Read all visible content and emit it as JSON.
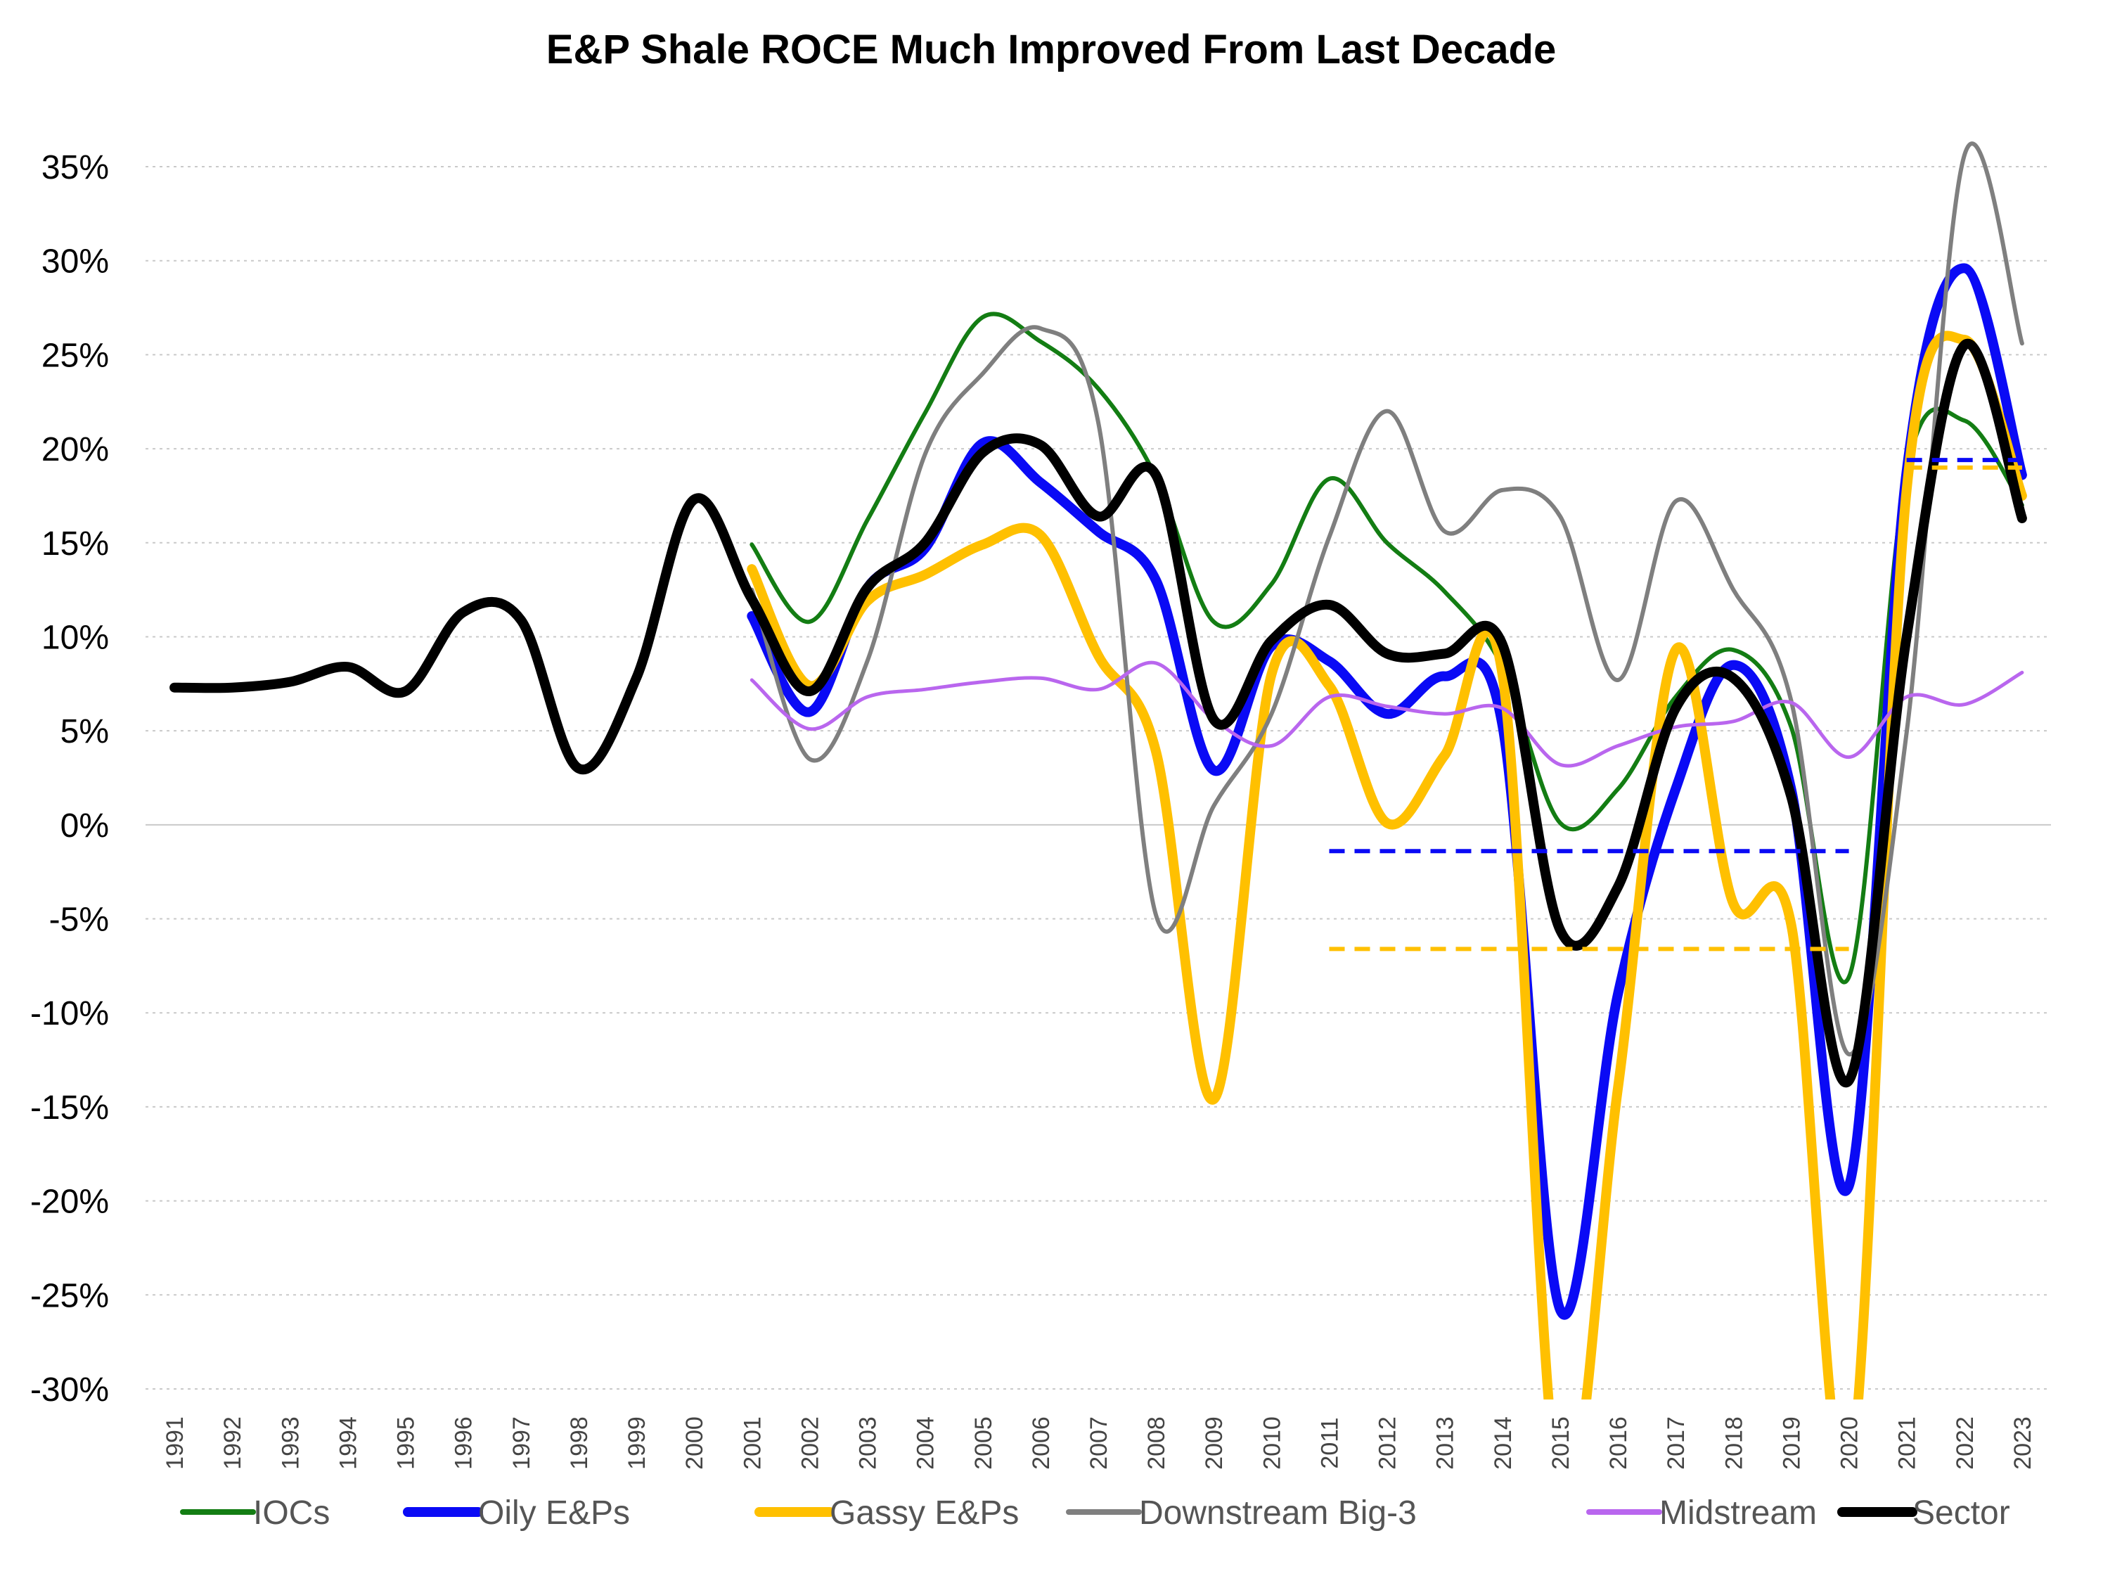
{
  "chart_data": {
    "type": "line",
    "title": "E&P Shale ROCE Much Improved From Last Decade",
    "xlabel": "",
    "ylabel": "",
    "ylim": [
      -30,
      35
    ],
    "yticks": [
      35,
      30,
      25,
      20,
      15,
      10,
      5,
      0,
      -5,
      -10,
      -15,
      -20,
      -25,
      -30
    ],
    "ytick_labels": [
      "35%",
      "30%",
      "25%",
      "20%",
      "15%",
      "10%",
      "5%",
      "0%",
      "-5%",
      "-10%",
      "-15%",
      "-20%",
      "-25%",
      "-30%"
    ],
    "categories": [
      "1991",
      "1992",
      "1993",
      "1994",
      "1995",
      "1996",
      "1997",
      "1998",
      "1999",
      "2000",
      "2001",
      "2002",
      "2003",
      "2004",
      "2005",
      "2006",
      "2007",
      "2008",
      "2009",
      "2010",
      "2011",
      "2012",
      "2013",
      "2014",
      "2015",
      "2016",
      "2017",
      "2018",
      "2019",
      "2020",
      "2021",
      "2022",
      "2023"
    ],
    "grid": "horizontal dotted",
    "legend_position": "bottom",
    "series": [
      {
        "name": "IOCs",
        "color": "#137d13",
        "width": 6,
        "values": [
          null,
          null,
          null,
          null,
          null,
          null,
          null,
          null,
          null,
          null,
          14.9,
          10.8,
          16.2,
          21.9,
          27.0,
          25.7,
          23.2,
          18.5,
          10.8,
          12.8,
          18.4,
          15.0,
          12.4,
          8.4,
          0.1,
          1.9,
          6.8,
          9.3,
          5.2,
          -8.1,
          18.8,
          21.5,
          17.0
        ]
      },
      {
        "name": "Oily E&Ps",
        "color": "#0a0af5",
        "width": 14,
        "values": [
          null,
          null,
          null,
          null,
          null,
          null,
          null,
          null,
          null,
          null,
          11.1,
          6.0,
          12.6,
          14.7,
          20.3,
          18.2,
          15.6,
          13.0,
          2.9,
          9.5,
          8.7,
          5.9,
          7.9,
          5.3,
          -25.8,
          -9.0,
          1.9,
          8.5,
          1.9,
          -19.2,
          18.8,
          29.6,
          18.6
        ]
      },
      {
        "name": "Gassy E&Ps",
        "color": "#ffc000",
        "width": 14,
        "values": [
          null,
          null,
          null,
          null,
          null,
          null,
          null,
          null,
          null,
          null,
          13.6,
          7.4,
          11.9,
          13.3,
          14.9,
          15.4,
          9.0,
          3.9,
          -14.6,
          8.0,
          7.4,
          0.1,
          3.7,
          8.0,
          -36.0,
          -14.0,
          9.3,
          -4.2,
          -5.3,
          -35.0,
          17.8,
          25.8,
          17.5
        ]
      },
      {
        "name": "Downstream Big-3",
        "color": "#7f7f7f",
        "width": 6,
        "values": [
          null,
          null,
          null,
          null,
          null,
          null,
          null,
          null,
          null,
          null,
          12.5,
          3.5,
          8.7,
          19.7,
          24.0,
          26.4,
          21.4,
          -4.8,
          1.0,
          5.9,
          15.3,
          22.0,
          15.6,
          17.8,
          16.4,
          7.7,
          17.2,
          12.5,
          6.6,
          -12.2,
          4.9,
          35.6,
          25.6
        ]
      },
      {
        "name": "Midstream",
        "color": "#b966ee",
        "width": 5,
        "values": [
          null,
          null,
          null,
          null,
          null,
          null,
          null,
          null,
          null,
          null,
          7.7,
          5.1,
          6.8,
          7.2,
          7.6,
          7.8,
          7.2,
          8.6,
          5.6,
          4.2,
          6.8,
          6.3,
          5.9,
          6.2,
          3.2,
          4.2,
          5.2,
          5.5,
          6.5,
          3.6,
          6.8,
          6.4,
          8.1
        ]
      },
      {
        "name": "Sector",
        "color": "#000000",
        "width": 14,
        "values": [
          7.3,
          7.3,
          7.6,
          8.4,
          7.1,
          11.3,
          10.9,
          3.0,
          7.8,
          17.3,
          12.0,
          7.1,
          12.6,
          15.0,
          19.8,
          20.2,
          16.4,
          18.6,
          5.6,
          9.8,
          11.7,
          9.1,
          9.1,
          9.6,
          -5.6,
          -3.3,
          6.2,
          7.8,
          1.5,
          -13.6,
          10.0,
          25.5,
          16.3
        ]
      }
    ],
    "reference_lines": [
      {
        "series": "Oily E&Ps",
        "color": "#0a0af5",
        "value": -1.4,
        "x_start": "2011",
        "x_end": "2020"
      },
      {
        "series": "Gassy E&Ps",
        "color": "#ffc000",
        "value": -6.6,
        "x_start": "2011",
        "x_end": "2020"
      },
      {
        "series": "Oily E&Ps",
        "color": "#0a0af5",
        "value": 19.4,
        "x_start": "2021",
        "x_end": "2023"
      },
      {
        "series": "Gassy E&Ps",
        "color": "#ffc000",
        "value": 19.0,
        "x_start": "2021",
        "x_end": "2023"
      }
    ]
  }
}
